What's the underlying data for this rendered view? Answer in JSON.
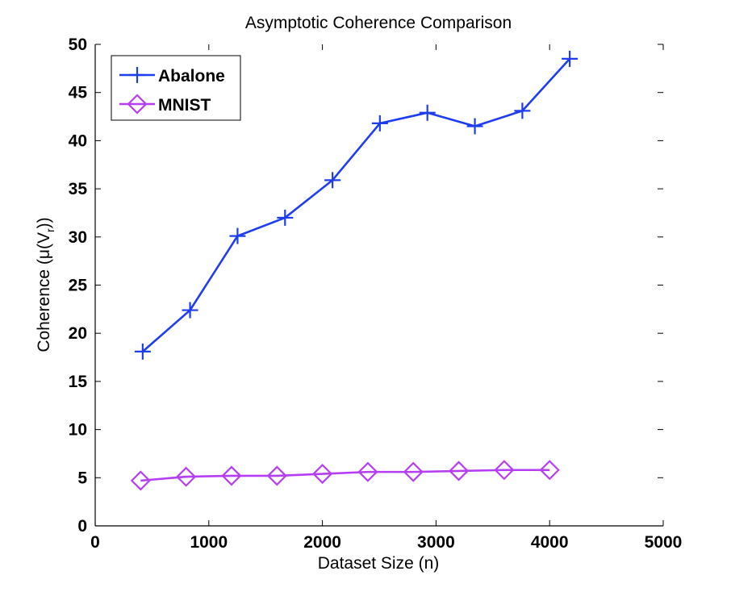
{
  "chart_data": {
    "type": "line",
    "title": "Asymptotic Coherence Comparison",
    "xlabel": "Dataset Size (n)",
    "ylabel": {
      "main": "Coherence (μ(V",
      "subscript": "r",
      "suffix": "))"
    },
    "xlim": [
      0,
      5000
    ],
    "ylim": [
      0,
      50
    ],
    "x_ticks": [
      0,
      1000,
      2000,
      3000,
      4000,
      5000
    ],
    "y_ticks": [
      0,
      5,
      10,
      15,
      20,
      25,
      30,
      35,
      40,
      45,
      50
    ],
    "grid": false,
    "legend_position": "top-left",
    "series": [
      {
        "name": "Abalone",
        "color": "#1f3df0",
        "marker": "plus",
        "x": [
          418,
          835,
          1253,
          1671,
          2089,
          2506,
          2924,
          3342,
          3760,
          4177
        ],
        "y": [
          18.1,
          22.4,
          30.1,
          32.0,
          35.9,
          41.8,
          42.9,
          41.5,
          43.1,
          48.5
        ]
      },
      {
        "name": "MNIST",
        "color": "#b53ef2",
        "marker": "diamond",
        "x": [
          400,
          800,
          1200,
          1600,
          2000,
          2400,
          2800,
          3200,
          3600,
          4000
        ],
        "y": [
          4.7,
          5.1,
          5.2,
          5.2,
          5.4,
          5.6,
          5.6,
          5.7,
          5.8,
          5.8
        ]
      }
    ]
  }
}
